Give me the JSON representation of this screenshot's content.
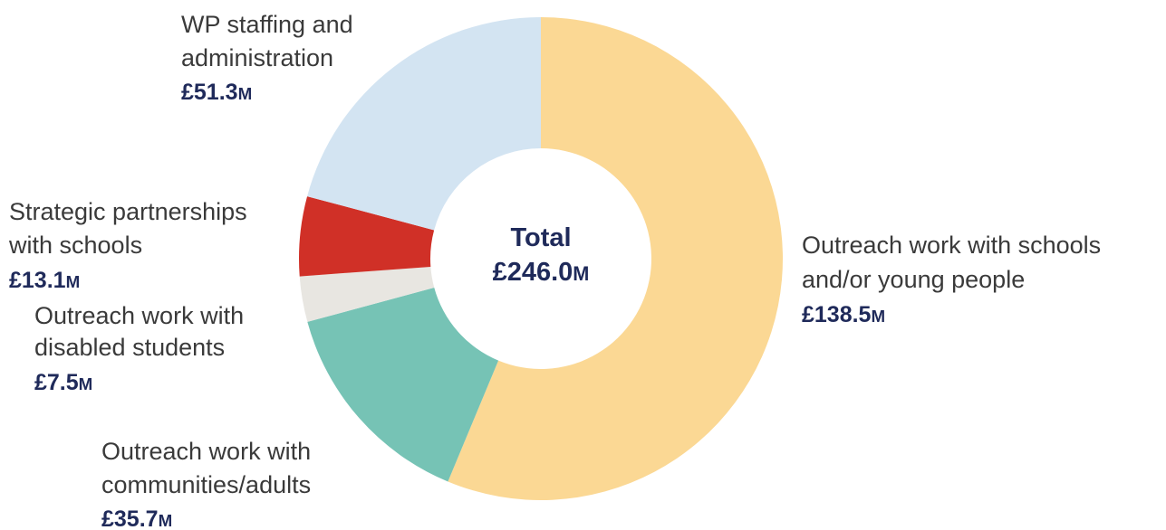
{
  "chart_data": {
    "type": "donut",
    "center_text": [
      "Total",
      "£246.0M"
    ],
    "labels": [
      [
        "Outreach work with schools",
        "and/or young people"
      ],
      [
        "Outreach work with",
        "communities/adults"
      ],
      [
        "Outreach work with",
        "disabled students"
      ],
      [
        "Strategic partnerships",
        "with schools"
      ],
      [
        "WP staffing and",
        "administration"
      ]
    ],
    "values": [
      138.5,
      35.7,
      7.5,
      13.1,
      51.3
    ],
    "value_labels": [
      "£138.5M",
      "£35.7M",
      "£7.5M",
      "£13.1M",
      "£51.3M"
    ],
    "colors": [
      "#fbd894",
      "#76c3b5",
      "#e8e6e1",
      "#d03027",
      "#d3e4f2"
    ]
  }
}
